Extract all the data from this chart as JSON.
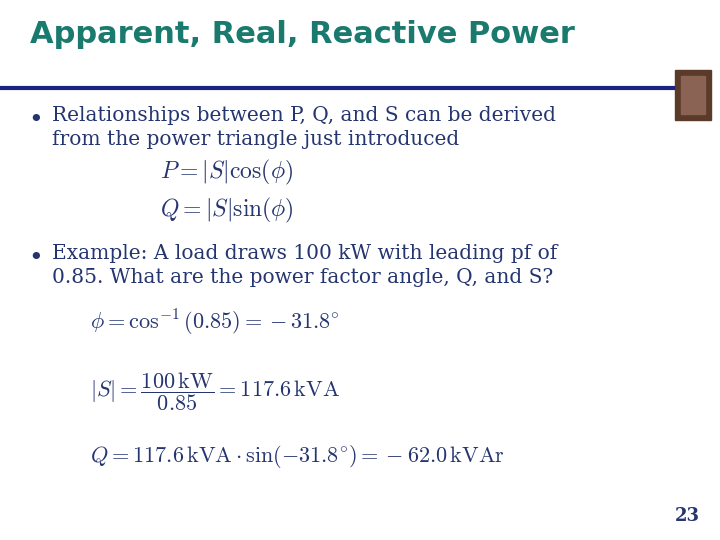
{
  "title": "Apparent, Real, Reactive Power",
  "title_color": "#1a7a6e",
  "title_fontsize": 22,
  "background_color": "#ffffff",
  "separator_color": "#1a237e",
  "separator_thickness": 3,
  "body_text_color": "#253570",
  "body_fontsize": 14.5,
  "math_fontsize": 15,
  "page_number": "23",
  "page_number_color": "#253570",
  "page_number_fontsize": 13,
  "bullet1_line1": "Relationships between P, Q, and S can be derived",
  "bullet1_line2": "from the power triangle just introduced",
  "formula1": "$P = |S|\\cos(\\phi)$",
  "formula2": "$Q = |S|\\sin(\\phi)$",
  "bullet2_line1": "Example: A load draws 100 kW with leading pf of",
  "bullet2_line2": "0.85. What are the power factor angle, Q, and S?",
  "formula3": "$\\phi = \\cos^{-1}(0.85) = -31.8^{\\circ}$",
  "formula4": "$|S| = \\dfrac{100\\,\\mathrm{kW}}{0.85} = 117.6\\,\\mathrm{kVA}$",
  "formula5": "$Q{=}117.6\\,\\mathrm{kVA}\\cdot\\sin(-31.8^{\\circ}) = -62.0\\,\\mathrm{kVAr}$"
}
